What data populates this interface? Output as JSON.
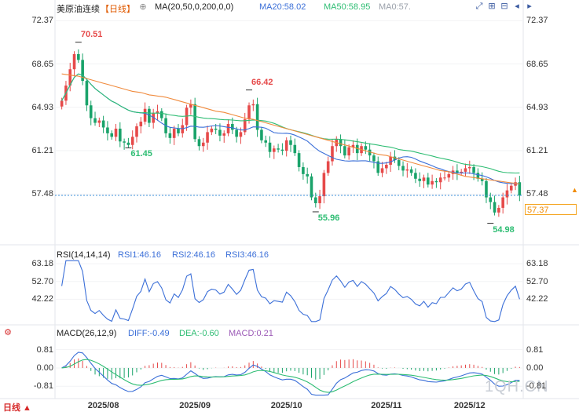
{
  "header": {
    "symbol": "美原油连续",
    "period": "【日线】",
    "ma_label": "MA(20,50,0,200,0,0)",
    "ma20": "MA20:58.02",
    "ma50": "MA50:58.95",
    "ma0": "MA0:57."
  },
  "rsi_header": {
    "label": "RSI(14,14,14)",
    "rsi1": "RSI1:46.16",
    "rsi2": "RSI2:46.16",
    "rsi3": "RSI3:46.16"
  },
  "macd_header": {
    "label": "MACD(26,12,9)",
    "diff": "DIFF:-0.49",
    "dea": "DEA:-0.60",
    "macd": "MACD:0.21"
  },
  "price_tag": "57.37",
  "period_button": "日线",
  "watermark": "1QH.CN",
  "colors": {
    "up": "#e64a4a",
    "down": "#1aa36a",
    "ma20": "#3b6fd8",
    "ma50": "#2ebd73",
    "ma200": "#f08a3c",
    "rsi": "#3b6fd8"
  },
  "chart_data": {
    "type": "candlestick",
    "title": "美原油连续 日线",
    "price_axis": {
      "ticks": [
        "72.37",
        "68.65",
        "64.93",
        "61.21",
        "57.48"
      ],
      "ylim": [
        53.6,
        73.2
      ]
    },
    "rsi_axis": {
      "ticks": [
        "63.18",
        "52.70",
        "42.22"
      ],
      "ylim": [
        28,
        66
      ]
    },
    "macd_axis": {
      "ticks": [
        "0.81",
        "0.00",
        "-0.81"
      ],
      "ylim": [
        -1.25,
        1.35
      ]
    },
    "x_labels": [
      "2025/08",
      "2025/09",
      "2025/10",
      "2025/11",
      "2025/12"
    ],
    "x_label_index": [
      10,
      32,
      54,
      78,
      98
    ],
    "annotations": [
      {
        "text": "70.51",
        "index": 4,
        "value": 70.51,
        "kind": "high"
      },
      {
        "text": "66.42",
        "index": 45,
        "value": 66.42,
        "kind": "high"
      },
      {
        "text": "61.45",
        "index": 16,
        "value": 61.45,
        "kind": "low"
      },
      {
        "text": "55.96",
        "index": 61,
        "value": 55.96,
        "kind": "low"
      },
      {
        "text": "54.98",
        "index": 103,
        "value": 54.98,
        "kind": "low"
      }
    ],
    "last_price": 57.37,
    "ma_values": {
      "MA20": 58.02,
      "MA50": 58.95
    },
    "close": [
      65.5,
      66.8,
      68.2,
      69.5,
      69.0,
      67.2,
      65.1,
      64.0,
      63.6,
      63.8,
      63.2,
      62.7,
      62.4,
      63.1,
      62.0,
      61.9,
      61.7,
      62.4,
      63.3,
      63.7,
      64.8,
      63.6,
      64.4,
      64.6,
      64.0,
      62.7,
      62.3,
      63.1,
      62.7,
      63.4,
      64.9,
      65.2,
      62.2,
      61.6,
      61.9,
      62.8,
      63.1,
      63.0,
      62.5,
      62.7,
      63.5,
      63.0,
      62.4,
      62.8,
      63.9,
      65.1,
      65.2,
      63.0,
      62.1,
      61.9,
      61.1,
      61.4,
      61.3,
      61.2,
      62.1,
      61.7,
      61.0,
      59.8,
      59.2,
      59.0,
      57.2,
      56.7,
      57.3,
      59.3,
      60.3,
      61.6,
      62.2,
      61.6,
      60.8,
      61.5,
      61.7,
      61.0,
      61.6,
      61.3,
      60.8,
      60.3,
      59.3,
      59.7,
      60.0,
      60.7,
      60.4,
      59.9,
      59.5,
      59.6,
      59.3,
      58.8,
      58.6,
      58.9,
      58.3,
      58.6,
      58.5,
      58.9,
      58.9,
      59.2,
      59.5,
      59.3,
      59.4,
      59.7,
      59.8,
      59.3,
      58.8,
      58.6,
      57.2,
      56.8,
      55.9,
      56.3,
      57.2,
      57.8,
      58.2,
      58.5,
      57.37
    ],
    "ma200": [
      67.8,
      67.75,
      67.7,
      67.65,
      67.6,
      67.5,
      67.4,
      67.3,
      67.2,
      67.1,
      67.0,
      66.9,
      66.8,
      66.7,
      66.6,
      66.5,
      66.4,
      66.3,
      66.25,
      66.2,
      66.1,
      66.0,
      65.95,
      65.9,
      65.85,
      65.8,
      65.7,
      65.6,
      65.5,
      65.4,
      65.3,
      65.2,
      65.1,
      65.0,
      64.9,
      64.8,
      64.7,
      64.6,
      64.55,
      64.5,
      64.4,
      64.3,
      64.2,
      64.1,
      64.0,
      63.95,
      63.9,
      63.8,
      63.7,
      63.6,
      63.5,
      63.4,
      63.3,
      63.2,
      63.1,
      63.0,
      62.9,
      62.8,
      62.7,
      62.6,
      62.5,
      62.4,
      62.3,
      62.2,
      62.1,
      62.0,
      61.9,
      61.8,
      61.7,
      61.6,
      61.5,
      61.4,
      61.3,
      61.2,
      61.1,
      61.0,
      60.9,
      60.85,
      60.8,
      60.7,
      60.6,
      60.5,
      60.4,
      60.3,
      60.2,
      60.1,
      60.0,
      59.9,
      59.8,
      59.7,
      59.6,
      59.5,
      59.45,
      59.4,
      59.3,
      59.2,
      59.1,
      59.0,
      58.95,
      58.9,
      58.85,
      58.8,
      58.75,
      58.7,
      58.65,
      58.6,
      58.55,
      58.5,
      58.45,
      58.4,
      58.35
    ]
  }
}
